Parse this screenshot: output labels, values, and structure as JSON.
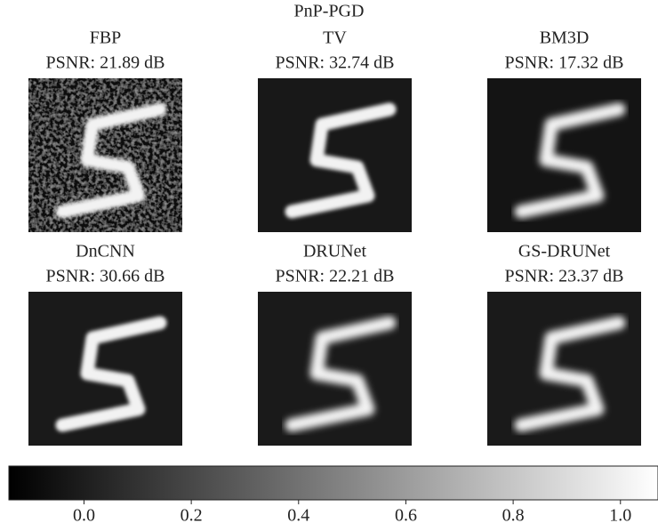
{
  "chart_data": {
    "type": "image_grid",
    "title": "PnP-PGD",
    "panels": [
      {
        "name": "FBP",
        "psnr": "PSNR: 21.89 dB"
      },
      {
        "name": "TV",
        "psnr": "PSNR: 32.74 dB"
      },
      {
        "name": "BM3D",
        "psnr": "PSNR: 17.32 dB"
      },
      {
        "name": "DnCNN",
        "psnr": "PSNR: 30.66 dB"
      },
      {
        "name": "DRUNet",
        "psnr": "PSNR: 22.21 dB"
      },
      {
        "name": "GS-DRUNet",
        "psnr": "PSNR: 23.37 dB"
      }
    ],
    "colorbar": {
      "clim": [
        -0.14,
        1.07
      ],
      "ticks": [
        {
          "value": 0,
          "label": "0.0"
        },
        {
          "value": 0.2,
          "label": "0.2"
        },
        {
          "value": 0.4,
          "label": "0.4"
        },
        {
          "value": 0.6,
          "label": "0.6"
        },
        {
          "value": 0.8,
          "label": "0.8"
        },
        {
          "value": 1,
          "label": "1.0"
        }
      ]
    }
  }
}
